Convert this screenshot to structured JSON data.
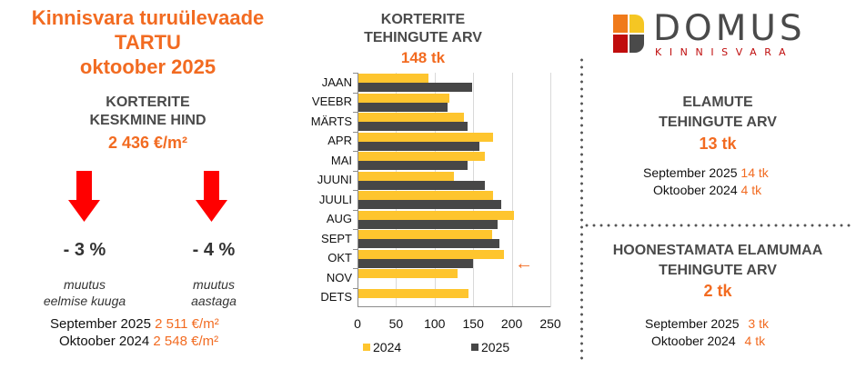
{
  "header": {
    "title_line1": "Kinnisvara turuülevaade",
    "title_line2": "TARTU",
    "title_line3": "oktoober 2025"
  },
  "avg_price": {
    "label_line1": "KORTERITE",
    "label_line2": "KESKMINE HIND",
    "value": "2 436 €/m²",
    "change_month": {
      "icon": "arrow-down-icon",
      "percent": "- 3 %",
      "label_line1": "muutus",
      "label_line2": "eelmise kuuga"
    },
    "change_year": {
      "icon": "arrow-down-icon",
      "percent": "- 4 %",
      "label_line1": "muutus",
      "label_line2": "aastaga"
    },
    "comparisons": [
      {
        "period": "September 2025",
        "value": "2 511 €/m²"
      },
      {
        "period": "Oktoober 2024",
        "value": "2 548 €/m²"
      }
    ]
  },
  "apartment_transactions": {
    "title_line1": "KORTERITE",
    "title_line2": "TEHINGUTE ARV",
    "total": "148 tk",
    "current_marker": "←"
  },
  "chart_data": {
    "type": "bar",
    "orientation": "horizontal",
    "title": "KORTERITE TEHINGUTE ARV",
    "subtitle": "148 tk",
    "categories": [
      "JAAN",
      "VEEBR",
      "MÄRTS",
      "APR",
      "MAI",
      "JUUNI",
      "JUULI",
      "AUG",
      "SEPT",
      "OKT",
      "NOV",
      "DETS"
    ],
    "series": [
      {
        "name": "2024",
        "color": "#fec52e",
        "values": [
          91,
          118,
          137,
          175,
          164,
          124,
          175,
          202,
          173,
          189,
          128,
          143
        ]
      },
      {
        "name": "2025",
        "color": "#474747",
        "values": [
          147,
          116,
          141,
          157,
          141,
          164,
          185,
          181,
          183,
          148,
          null,
          null
        ]
      }
    ],
    "xlim": [
      0,
      250
    ],
    "xticks": [
      "0",
      "50",
      "100",
      "150",
      "200",
      "250"
    ],
    "grid": true,
    "legend_position": "bottom",
    "annotations": [
      "← at OKT"
    ]
  },
  "houses": {
    "title_line1": "ELAMUTE",
    "title_line2": "TEHINGUTE ARV",
    "value": "13 tk",
    "comparisons": [
      {
        "period": "September 2025",
        "value": "14 tk"
      },
      {
        "period": "Oktoober 2024",
        "value": "4 tk"
      }
    ]
  },
  "land": {
    "title_line1": "HOONESTAMATA ELAMUMAA",
    "title_line2": "TEHINGUTE ARV",
    "value": "2 tk",
    "comparisons": [
      {
        "period": "September 2025",
        "value": "3 tk"
      },
      {
        "period": "Oktoober 2024",
        "value": "4 tk"
      }
    ]
  },
  "logo": {
    "word": "DOMUS",
    "sub": "KINNISVARA",
    "colors": [
      "#f07a1a",
      "#f5c623",
      "#c00d0d",
      "#4a4a4a"
    ]
  },
  "colors": {
    "accent_orange": "#f26b21",
    "heading_gray": "#4a4a4a",
    "arrow_red": "#ff0000"
  }
}
